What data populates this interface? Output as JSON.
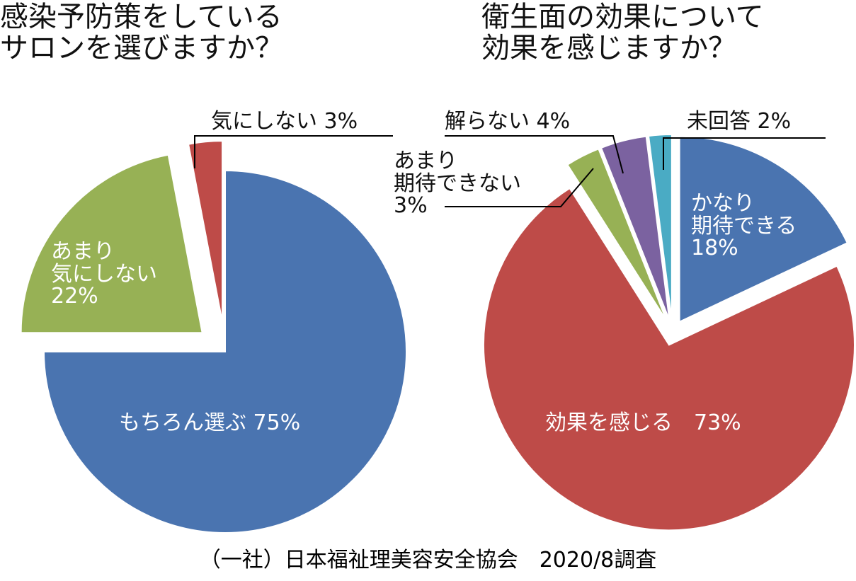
{
  "chart_data": [
    {
      "type": "pie",
      "title": "感染予防策をしている\nサロンを選びますか？",
      "categories": [
        "もちろん選ぶ",
        "あまり\n気にしない",
        "気にしない"
      ],
      "values": [
        75,
        22,
        3
      ],
      "value_labels": [
        "75%",
        "22%",
        "3%"
      ],
      "colors": [
        "#4a74b0",
        "#97b155",
        "#be4b48"
      ]
    },
    {
      "type": "pie",
      "title": "衛生面の効果について\n効果を感じますか？",
      "categories": [
        "かなり\n期待できる",
        "効果を感じる",
        "あまり\n期待できない",
        "解らない",
        "未回答"
      ],
      "values": [
        18,
        73,
        3,
        4,
        2
      ],
      "value_labels": [
        "18%",
        "73%",
        "3%",
        "4%",
        "2%"
      ],
      "colors": [
        "#4a74b0",
        "#be4b48",
        "#97b155",
        "#7b62a0",
        "#4aabc4"
      ]
    }
  ],
  "source": "（一社）日本福祉理美容安全協会　2020/8調査"
}
